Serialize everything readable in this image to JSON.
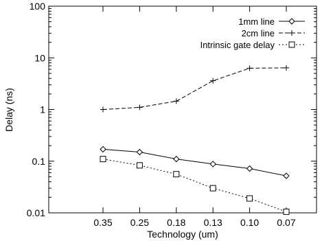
{
  "chart_data": {
    "type": "line",
    "xlabel": "Technology (um)",
    "ylabel": "Delay (ns)",
    "yscale": "log",
    "ylim": [
      0.01,
      100
    ],
    "yticks": [
      "0.01",
      "0.1",
      "1",
      "10",
      "100"
    ],
    "categories": [
      "0.35",
      "0.25",
      "0.18",
      "0.13",
      "0.10",
      "0.07"
    ],
    "legend_position": "top-right",
    "grid": false,
    "series": [
      {
        "name": "1mm line",
        "marker": "diamond",
        "dash": "solid",
        "values": [
          0.17,
          0.15,
          0.11,
          0.088,
          0.072,
          0.052
        ]
      },
      {
        "name": "2cm line",
        "marker": "plus",
        "dash": "dashed",
        "values": [
          1.0,
          1.1,
          1.45,
          3.6,
          6.3,
          6.4
        ]
      },
      {
        "name": "Intrinsic gate delay",
        "marker": "square",
        "dash": "dotted",
        "values": [
          0.11,
          0.083,
          0.056,
          0.03,
          0.019,
          0.0105
        ]
      }
    ]
  }
}
